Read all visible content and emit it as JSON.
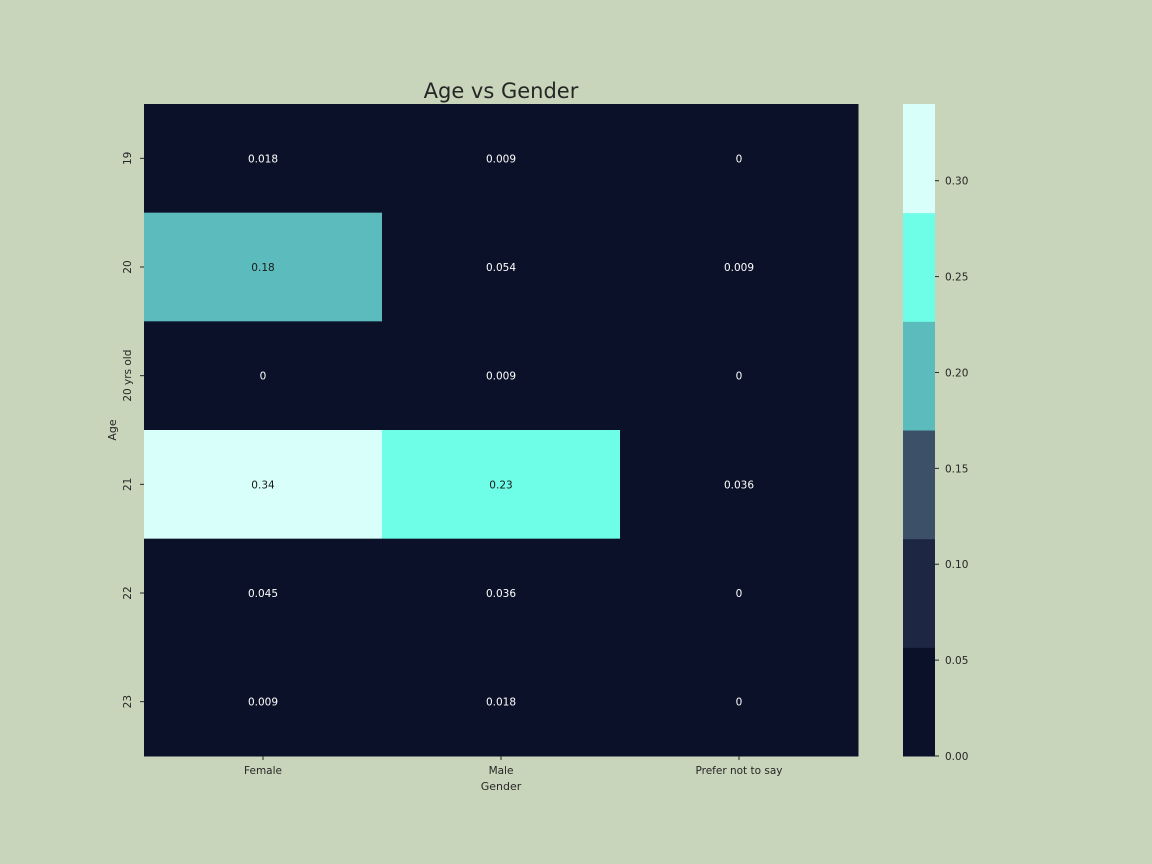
{
  "chart_data": {
    "type": "heatmap",
    "title": "Age vs Gender",
    "xlabel": "Gender",
    "ylabel": "Age",
    "x_categories": [
      "Female",
      "Male",
      "Prefer not to say"
    ],
    "y_categories": [
      "19",
      "20",
      "20 yrs old",
      "21",
      "22",
      "23"
    ],
    "values": [
      [
        0.018,
        0.009,
        0
      ],
      [
        0.18,
        0.054,
        0.009
      ],
      [
        0,
        0.009,
        0
      ],
      [
        0.34,
        0.23,
        0.036
      ],
      [
        0.045,
        0.036,
        0
      ],
      [
        0.009,
        0.018,
        0
      ]
    ],
    "cell_labels": [
      [
        "0.018",
        "0.009",
        "0"
      ],
      [
        "0.18",
        "0.054",
        "0.009"
      ],
      [
        "0",
        "0.009",
        "0"
      ],
      [
        "0.34",
        "0.23",
        "0.036"
      ],
      [
        "0.045",
        "0.036",
        "0"
      ],
      [
        "0.009",
        "0.018",
        "0"
      ]
    ],
    "colorbar": {
      "range": [
        0,
        0.34
      ],
      "ticks": [
        0.0,
        0.05,
        0.1,
        0.15,
        0.2,
        0.25,
        0.3
      ],
      "tick_labels": [
        "0.00",
        "0.05",
        "0.10",
        "0.15",
        "0.20",
        "0.25",
        "0.30"
      ],
      "colors": [
        "#0b1128",
        "#1d2744",
        "#3c5068",
        "#5cbcbd",
        "#6efde6",
        "#d8fff9"
      ]
    },
    "label_colors": {
      "on_dark": "#ffffff",
      "on_light": "#1a1a1a"
    },
    "text_color": "#262626",
    "background": "#c8d5ba",
    "grid": false
  }
}
